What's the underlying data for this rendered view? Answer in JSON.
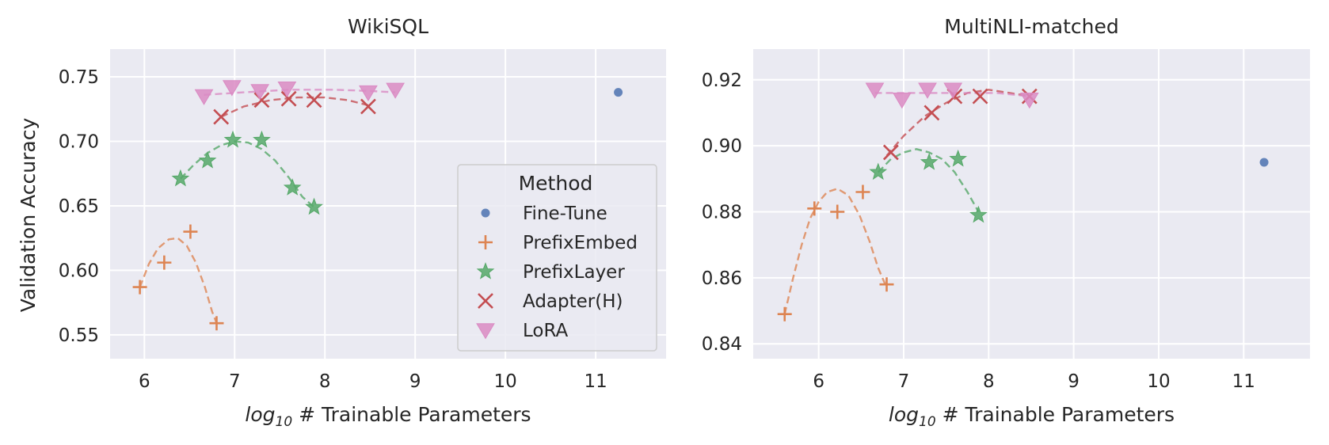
{
  "chart_data": [
    {
      "type": "scatter",
      "title": "WikiSQL",
      "xlabel_italic": "log",
      "xlabel_sub": "10",
      "xlabel_rest": " # Trainable Parameters",
      "ylabel": "Validation Accuracy",
      "xlim": [
        5.62,
        11.78
      ],
      "ylim": [
        0.5315,
        0.7715
      ],
      "xticks": [
        6,
        7,
        8,
        9,
        10,
        11
      ],
      "yticks": [
        0.55,
        0.6,
        0.65,
        0.7,
        0.75
      ],
      "ytick_labels": [
        "0.55",
        "0.60",
        "0.65",
        "0.70",
        "0.75"
      ],
      "series": [
        {
          "name": "Fine-Tune",
          "marker": "dot",
          "color": "#4c72b0",
          "points": [
            [
              11.25,
              0.738
            ]
          ]
        },
        {
          "name": "PrefixEmbed",
          "marker": "plus",
          "color": "#dd8452",
          "points": [
            [
              5.95,
              0.587
            ],
            [
              6.22,
              0.606
            ],
            [
              6.51,
              0.63
            ],
            [
              6.8,
              0.559
            ]
          ],
          "curve": [
            [
              5.95,
              0.587
            ],
            [
              6.05,
              0.605
            ],
            [
              6.15,
              0.617
            ],
            [
              6.27,
              0.624
            ],
            [
              6.37,
              0.625
            ],
            [
              6.47,
              0.619
            ],
            [
              6.57,
              0.606
            ],
            [
              6.67,
              0.587
            ],
            [
              6.75,
              0.568
            ],
            [
              6.8,
              0.559
            ]
          ]
        },
        {
          "name": "PrefixLayer",
          "marker": "star",
          "color": "#55a868",
          "points": [
            [
              6.4,
              0.671
            ],
            [
              6.7,
              0.685
            ],
            [
              6.98,
              0.701
            ],
            [
              7.3,
              0.701
            ],
            [
              7.64,
              0.664
            ],
            [
              7.88,
              0.649
            ]
          ],
          "curve": [
            [
              6.4,
              0.671
            ],
            [
              6.55,
              0.682
            ],
            [
              6.7,
              0.691
            ],
            [
              6.85,
              0.697
            ],
            [
              7.0,
              0.7
            ],
            [
              7.15,
              0.699
            ],
            [
              7.3,
              0.694
            ],
            [
              7.45,
              0.685
            ],
            [
              7.6,
              0.672
            ],
            [
              7.75,
              0.657
            ],
            [
              7.88,
              0.649
            ]
          ]
        },
        {
          "name": "Adapter(H)",
          "marker": "x",
          "color": "#c44e52",
          "points": [
            [
              6.85,
              0.719
            ],
            [
              7.3,
              0.732
            ],
            [
              7.6,
              0.733
            ],
            [
              7.88,
              0.732
            ],
            [
              8.48,
              0.727
            ]
          ],
          "curve": [
            [
              6.85,
              0.719
            ],
            [
              7.1,
              0.727
            ],
            [
              7.4,
              0.732
            ],
            [
              7.7,
              0.734
            ],
            [
              8.0,
              0.734
            ],
            [
              8.25,
              0.732
            ],
            [
              8.48,
              0.728
            ]
          ]
        },
        {
          "name": "LoRA",
          "marker": "tri",
          "color": "#da8bc3",
          "points": [
            [
              6.66,
              0.735
            ],
            [
              6.97,
              0.742
            ],
            [
              7.28,
              0.739
            ],
            [
              7.58,
              0.741
            ],
            [
              8.48,
              0.738
            ],
            [
              8.78,
              0.74
            ]
          ],
          "curve": [
            [
              6.66,
              0.736
            ],
            [
              7.1,
              0.738
            ],
            [
              7.6,
              0.74
            ],
            [
              8.1,
              0.74
            ],
            [
              8.5,
              0.739
            ],
            [
              8.78,
              0.738
            ]
          ]
        }
      ]
    },
    {
      "type": "scatter",
      "title": "MultiNLI-matched",
      "xlabel_italic": "log",
      "xlabel_sub": "10",
      "xlabel_rest": " # Trainable Parameters",
      "ylabel": "",
      "xlim": [
        5.23,
        11.78
      ],
      "ylim": [
        0.8355,
        0.9293
      ],
      "xticks": [
        6,
        7,
        8,
        9,
        10,
        11
      ],
      "yticks": [
        0.84,
        0.86,
        0.88,
        0.9,
        0.92
      ],
      "ytick_labels": [
        "0.84",
        "0.86",
        "0.88",
        "0.90",
        "0.92"
      ],
      "series": [
        {
          "name": "Fine-Tune",
          "marker": "dot",
          "color": "#4c72b0",
          "points": [
            [
              11.24,
              0.895
            ]
          ]
        },
        {
          "name": "PrefixEmbed",
          "marker": "plus",
          "color": "#dd8452",
          "points": [
            [
              5.6,
              0.849
            ],
            [
              5.95,
              0.881
            ],
            [
              6.22,
              0.88
            ],
            [
              6.52,
              0.886
            ],
            [
              6.8,
              0.858
            ]
          ],
          "curve": [
            [
              5.6,
              0.849
            ],
            [
              5.7,
              0.86
            ],
            [
              5.8,
              0.87
            ],
            [
              5.9,
              0.878
            ],
            [
              6.0,
              0.883
            ],
            [
              6.1,
              0.886
            ],
            [
              6.22,
              0.887
            ],
            [
              6.35,
              0.885
            ],
            [
              6.48,
              0.879
            ],
            [
              6.6,
              0.871
            ],
            [
              6.7,
              0.863
            ],
            [
              6.8,
              0.857
            ]
          ]
        },
        {
          "name": "PrefixLayer",
          "marker": "star",
          "color": "#55a868",
          "points": [
            [
              6.7,
              0.892
            ],
            [
              7.3,
              0.895
            ],
            [
              7.64,
              0.896
            ],
            [
              7.88,
              0.879
            ]
          ],
          "curve": [
            [
              6.7,
              0.892
            ],
            [
              6.85,
              0.896
            ],
            [
              7.0,
              0.898
            ],
            [
              7.15,
              0.899
            ],
            [
              7.3,
              0.898
            ],
            [
              7.45,
              0.896
            ],
            [
              7.6,
              0.892
            ],
            [
              7.75,
              0.886
            ],
            [
              7.88,
              0.88
            ]
          ]
        },
        {
          "name": "Adapter(H)",
          "marker": "x",
          "color": "#c44e52",
          "points": [
            [
              6.85,
              0.898
            ],
            [
              7.33,
              0.91
            ],
            [
              7.6,
              0.915
            ],
            [
              7.9,
              0.915
            ],
            [
              8.48,
              0.915
            ]
          ],
          "curve": [
            [
              6.8,
              0.897
            ],
            [
              7.0,
              0.903
            ],
            [
              7.25,
              0.909
            ],
            [
              7.5,
              0.913
            ],
            [
              7.75,
              0.916
            ],
            [
              8.0,
              0.917
            ],
            [
              8.25,
              0.916
            ],
            [
              8.48,
              0.915
            ]
          ]
        },
        {
          "name": "LoRA",
          "marker": "tri",
          "color": "#da8bc3",
          "points": [
            [
              6.66,
              0.917
            ],
            [
              6.98,
              0.914
            ],
            [
              7.28,
              0.917
            ],
            [
              7.58,
              0.917
            ],
            [
              8.48,
              0.914
            ]
          ],
          "curve": [
            [
              6.66,
              0.916
            ],
            [
              7.2,
              0.916
            ],
            [
              7.7,
              0.916
            ],
            [
              8.1,
              0.916
            ],
            [
              8.48,
              0.915
            ]
          ]
        }
      ]
    }
  ],
  "legend": {
    "title": "Method",
    "entries": [
      {
        "name": "Fine-Tune",
        "marker": "dot",
        "color": "#4c72b0"
      },
      {
        "name": "PrefixEmbed",
        "marker": "plus",
        "color": "#dd8452"
      },
      {
        "name": "PrefixLayer",
        "marker": "star",
        "color": "#55a868"
      },
      {
        "name": "Adapter(H)",
        "marker": "x",
        "color": "#c44e52"
      },
      {
        "name": "LoRA",
        "marker": "tri",
        "color": "#da8bc3"
      }
    ]
  },
  "colors": {
    "panel_bg": "#eaeaf2",
    "grid": "#ffffff",
    "text": "#262626"
  }
}
